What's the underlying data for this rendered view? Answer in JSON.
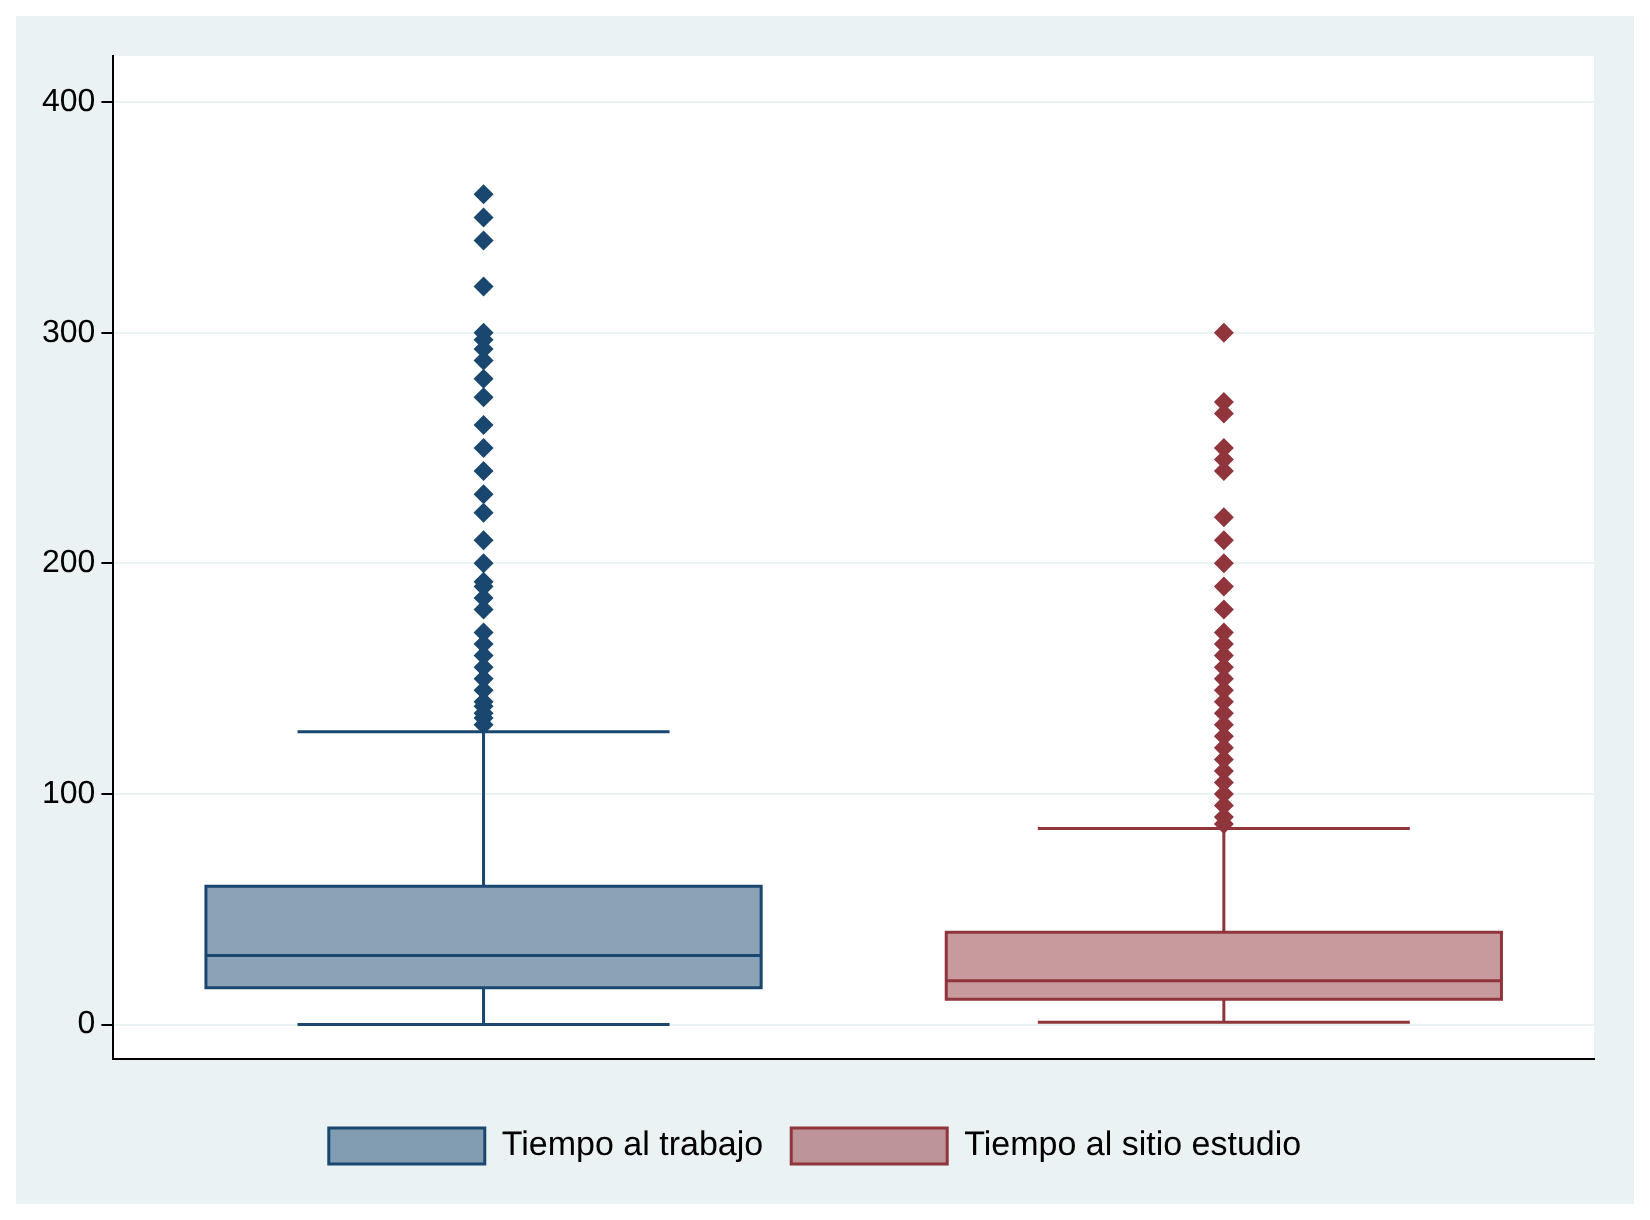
{
  "chart_data": {
    "type": "box",
    "categories": [
      null
    ],
    "series": [
      {
        "name": "Tiempo al trabajo",
        "color": "#1a476f",
        "boxes": [
          {
            "low": 0,
            "q1": 16,
            "median": 30,
            "q3": 60,
            "high": 127,
            "outliers": [
              130,
              133,
              135,
              138,
              140,
              145,
              150,
              155,
              160,
              165,
              170,
              180,
              185,
              190,
              192,
              200,
              210,
              222,
              230,
              240,
              250,
              260,
              272,
              280,
              288,
              293,
              297,
              300,
              320,
              340,
              350,
              360
            ]
          }
        ]
      },
      {
        "name": "Tiempo al sitio estudio",
        "color": "#90353b",
        "boxes": [
          {
            "low": 1,
            "q1": 11,
            "median": 19,
            "q3": 40,
            "high": 85,
            "outliers": [
              87,
              90,
              95,
              100,
              105,
              110,
              115,
              120,
              125,
              130,
              135,
              140,
              145,
              150,
              155,
              160,
              165,
              170,
              180,
              190,
              200,
              210,
              220,
              240,
              245,
              250,
              265,
              270,
              300
            ]
          }
        ]
      }
    ],
    "ylim": [
      -15,
      420
    ],
    "yticks": [
      0,
      100,
      200,
      300,
      400
    ],
    "grid": "y",
    "legend": "bottom",
    "marker": "diamond"
  }
}
